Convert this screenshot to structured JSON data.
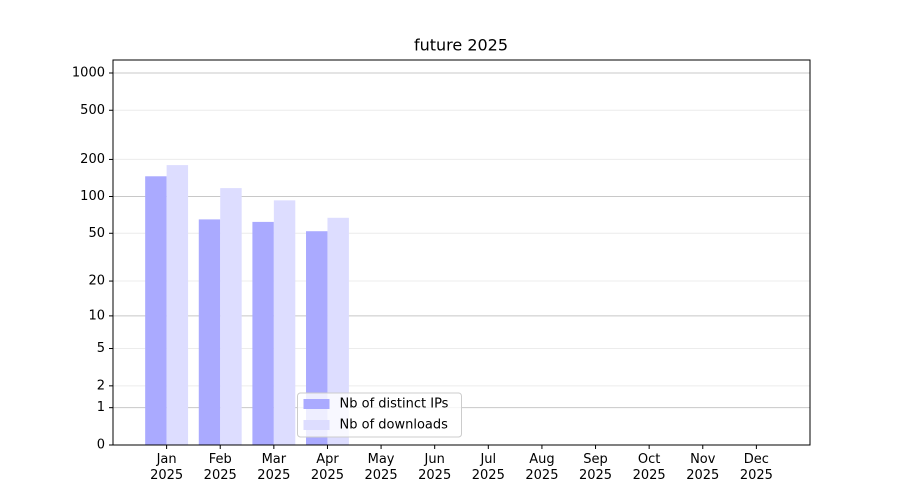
{
  "chart_data": {
    "type": "bar",
    "title": "future 2025",
    "categories": [
      "Jan\n2025",
      "Feb\n2025",
      "Mar\n2025",
      "Apr\n2025",
      "May\n2025",
      "Jun\n2025",
      "Jul\n2025",
      "Aug\n2025",
      "Sep\n2025",
      "Oct\n2025",
      "Nov\n2025",
      "Dec\n2025"
    ],
    "series": [
      {
        "name": "Nb of distinct IPs",
        "color": "#aaaaff",
        "values": [
          146,
          65,
          62,
          52,
          0,
          0,
          0,
          0,
          0,
          0,
          0,
          0
        ]
      },
      {
        "name": "Nb of downloads",
        "color": "#ddddff",
        "values": [
          180,
          117,
          93,
          67,
          0,
          0,
          0,
          0,
          0,
          0,
          0,
          0
        ]
      }
    ],
    "yscale": "log1p",
    "ylim": [
      0,
      1273
    ],
    "yticks": [
      0,
      1,
      2,
      5,
      10,
      20,
      50,
      100,
      200,
      500,
      1000
    ],
    "grid": true,
    "legend": "lower center"
  }
}
